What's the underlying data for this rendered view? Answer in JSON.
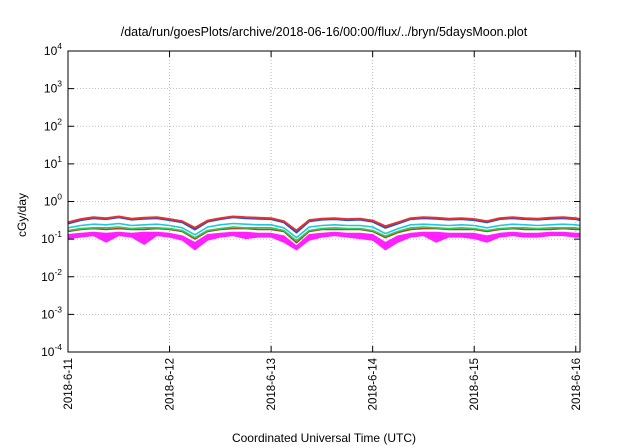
{
  "chart_data": {
    "type": "line",
    "title": "/data/run/goesPlots/archive/2018-06-16/00:00/flux/../bryn/5daysMoon.plot",
    "xlabel": "Coordinated Universal Time (UTC)",
    "ylabel": "cGy/day",
    "x_range": [
      "2018-06-11T00:00",
      "2018-06-16T01:00"
    ],
    "x_ticks": [
      "2018-6-11",
      "2018-6-12",
      "2018-6-13",
      "2018-6-14",
      "2018-6-15",
      "2018-6-16"
    ],
    "yscale": "log",
    "ylim": [
      0.0001,
      10000
    ],
    "y_ticks": [
      {
        "mant": "10",
        "exp": "-4"
      },
      {
        "mant": "10",
        "exp": "-3"
      },
      {
        "mant": "10",
        "exp": "-2"
      },
      {
        "mant": "10",
        "exp": "-1"
      },
      {
        "mant": "10",
        "exp": "0"
      },
      {
        "mant": "10",
        "exp": "1"
      },
      {
        "mant": "10",
        "exp": "2"
      },
      {
        "mant": "10",
        "exp": "3"
      },
      {
        "mant": "10",
        "exp": "4"
      }
    ],
    "grid": true,
    "legend": "none",
    "time_points": [
      "2018-06-11T00:00",
      "2018-06-11T03:00",
      "2018-06-11T06:00",
      "2018-06-11T09:00",
      "2018-06-11T12:00",
      "2018-06-11T15:00",
      "2018-06-11T18:00",
      "2018-06-11T21:00",
      "2018-06-12T00:00",
      "2018-06-12T03:00",
      "2018-06-12T06:00",
      "2018-06-12T09:00",
      "2018-06-12T12:00",
      "2018-06-12T15:00",
      "2018-06-12T18:00",
      "2018-06-12T21:00",
      "2018-06-13T00:00",
      "2018-06-13T03:00",
      "2018-06-13T06:00",
      "2018-06-13T09:00",
      "2018-06-13T12:00",
      "2018-06-13T15:00",
      "2018-06-13T18:00",
      "2018-06-13T21:00",
      "2018-06-14T00:00",
      "2018-06-14T03:00",
      "2018-06-14T06:00",
      "2018-06-14T09:00",
      "2018-06-14T12:00",
      "2018-06-14T15:00",
      "2018-06-14T18:00",
      "2018-06-14T21:00",
      "2018-06-15T00:00",
      "2018-06-15T03:00",
      "2018-06-15T06:00",
      "2018-06-15T09:00",
      "2018-06-15T12:00",
      "2018-06-15T15:00",
      "2018-06-15T18:00",
      "2018-06-15T21:00",
      "2018-06-16T00:00",
      "2018-06-16T01:00"
    ],
    "series": [
      {
        "color": "#e8302a",
        "values": [
          0.28,
          0.34,
          0.38,
          0.36,
          0.4,
          0.35,
          0.37,
          0.38,
          0.34,
          0.3,
          0.2,
          0.31,
          0.36,
          0.4,
          0.38,
          0.37,
          0.36,
          0.3,
          0.17,
          0.32,
          0.35,
          0.36,
          0.34,
          0.35,
          0.31,
          0.22,
          0.28,
          0.36,
          0.38,
          0.37,
          0.35,
          0.36,
          0.34,
          0.3,
          0.36,
          0.38,
          0.36,
          0.35,
          0.37,
          0.38,
          0.36,
          0.34
        ]
      },
      {
        "color": "#1f4fd8",
        "values": [
          0.26,
          0.32,
          0.36,
          0.34,
          0.38,
          0.33,
          0.35,
          0.36,
          0.32,
          0.28,
          0.18,
          0.29,
          0.34,
          0.38,
          0.36,
          0.35,
          0.34,
          0.28,
          0.15,
          0.3,
          0.33,
          0.34,
          0.32,
          0.33,
          0.29,
          0.2,
          0.26,
          0.34,
          0.36,
          0.35,
          0.33,
          0.34,
          0.32,
          0.28,
          0.34,
          0.36,
          0.34,
          0.33,
          0.35,
          0.36,
          0.34,
          0.32
        ]
      },
      {
        "color": "#1ec8d8",
        "values": [
          0.2,
          0.23,
          0.25,
          0.24,
          0.26,
          0.23,
          0.24,
          0.25,
          0.23,
          0.2,
          0.13,
          0.21,
          0.24,
          0.26,
          0.25,
          0.24,
          0.24,
          0.2,
          0.11,
          0.21,
          0.23,
          0.24,
          0.23,
          0.23,
          0.21,
          0.14,
          0.19,
          0.24,
          0.25,
          0.24,
          0.23,
          0.24,
          0.23,
          0.2,
          0.23,
          0.25,
          0.24,
          0.23,
          0.24,
          0.25,
          0.24,
          0.23
        ]
      },
      {
        "color": "#2ecc55",
        "values": [
          0.17,
          0.19,
          0.2,
          0.2,
          0.21,
          0.19,
          0.2,
          0.2,
          0.19,
          0.17,
          0.11,
          0.17,
          0.19,
          0.21,
          0.2,
          0.2,
          0.2,
          0.17,
          0.09,
          0.17,
          0.19,
          0.2,
          0.19,
          0.19,
          0.17,
          0.12,
          0.16,
          0.2,
          0.21,
          0.2,
          0.19,
          0.2,
          0.19,
          0.17,
          0.19,
          0.2,
          0.2,
          0.19,
          0.2,
          0.2,
          0.2,
          0.19
        ]
      },
      {
        "color": "#a05020",
        "values": [
          0.16,
          0.18,
          0.19,
          0.18,
          0.19,
          0.18,
          0.18,
          0.19,
          0.18,
          0.16,
          0.1,
          0.16,
          0.18,
          0.19,
          0.19,
          0.18,
          0.18,
          0.16,
          0.08,
          0.16,
          0.18,
          0.18,
          0.18,
          0.18,
          0.16,
          0.11,
          0.15,
          0.18,
          0.19,
          0.19,
          0.18,
          0.18,
          0.18,
          0.16,
          0.18,
          0.19,
          0.18,
          0.18,
          0.18,
          0.19,
          0.18,
          0.18
        ]
      },
      {
        "color": "#ff20ff",
        "values": [
          0.13,
          0.14,
          0.15,
          0.14,
          0.15,
          0.14,
          0.15,
          0.15,
          0.14,
          0.12,
          0.08,
          0.13,
          0.14,
          0.15,
          0.15,
          0.14,
          0.14,
          0.12,
          0.065,
          0.13,
          0.14,
          0.15,
          0.14,
          0.14,
          0.13,
          0.08,
          0.12,
          0.14,
          0.15,
          0.15,
          0.14,
          0.14,
          0.14,
          0.12,
          0.14,
          0.15,
          0.14,
          0.14,
          0.15,
          0.15,
          0.14,
          0.14
        ]
      }
    ],
    "band": {
      "color": "#ff20ff",
      "low": [
        0.1,
        0.11,
        0.12,
        0.08,
        0.12,
        0.11,
        0.07,
        0.12,
        0.11,
        0.09,
        0.05,
        0.09,
        0.11,
        0.12,
        0.1,
        0.11,
        0.11,
        0.08,
        0.05,
        0.09,
        0.11,
        0.12,
        0.11,
        0.1,
        0.09,
        0.05,
        0.08,
        0.11,
        0.12,
        0.08,
        0.11,
        0.11,
        0.1,
        0.08,
        0.11,
        0.12,
        0.11,
        0.11,
        0.12,
        0.12,
        0.11,
        0.11
      ]
    }
  }
}
